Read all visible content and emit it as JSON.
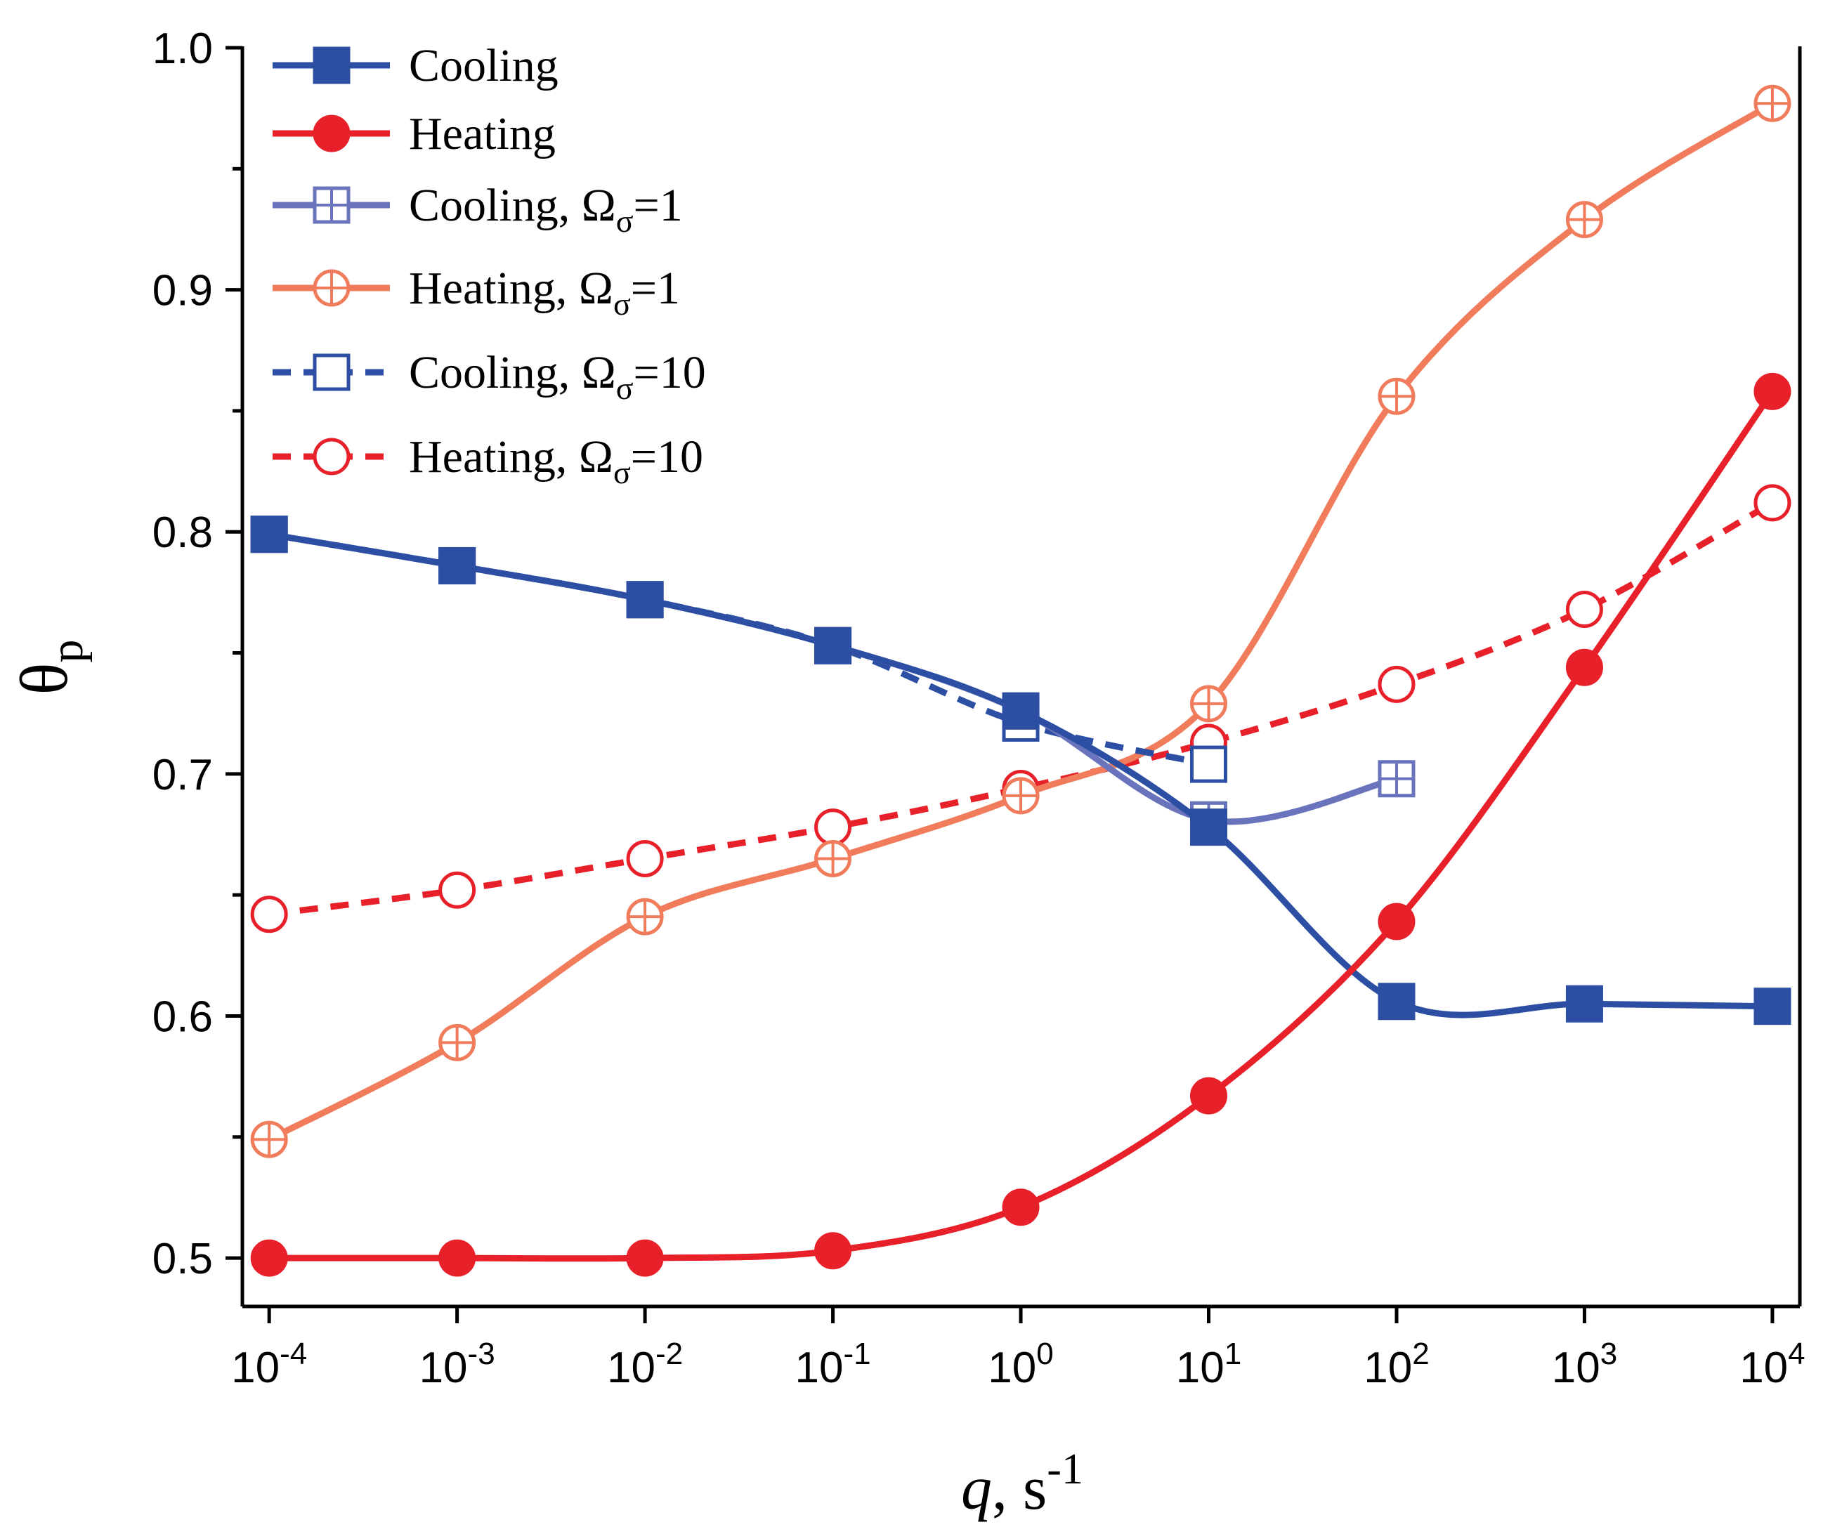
{
  "chart_data": {
    "type": "line",
    "title": "",
    "xscale": "log",
    "xlabel": {
      "var": "q",
      "sep": ", s",
      "exp": "-1"
    },
    "ylabel": {
      "base": "θ",
      "sub": "p"
    },
    "x": [
      0.0001,
      0.001,
      0.01,
      0.1,
      1,
      10,
      100,
      1000,
      10000
    ],
    "xlim": [
      7.2e-05,
      14000
    ],
    "ylim": [
      0.48,
      1.0
    ],
    "xticks": [
      {
        "base": "10",
        "exp": "-4"
      },
      {
        "base": "10",
        "exp": "-3"
      },
      {
        "base": "10",
        "exp": "-2"
      },
      {
        "base": "10",
        "exp": "-1"
      },
      {
        "base": "10",
        "exp": "0"
      },
      {
        "base": "10",
        "exp": "1"
      },
      {
        "base": "10",
        "exp": "2"
      },
      {
        "base": "10",
        "exp": "3"
      },
      {
        "base": "10",
        "exp": "4"
      }
    ],
    "yticks": [
      "0.5",
      "0.6",
      "0.7",
      "0.8",
      "0.9",
      "1.0"
    ],
    "grid": false,
    "legend_position": "top-left",
    "series": [
      {
        "name": "Cooling",
        "label": "Cooling",
        "omega": "",
        "color": "#2c4fa3",
        "dash": "solid",
        "marker": "square-filled",
        "values": [
          0.799,
          0.786,
          0.772,
          0.753,
          0.726,
          0.678,
          0.606,
          0.605,
          0.604
        ]
      },
      {
        "name": "Heating",
        "label": "Heating",
        "omega": "",
        "color": "#e8202a",
        "dash": "solid",
        "marker": "circle-filled",
        "values": [
          0.5,
          0.5,
          0.5,
          0.503,
          0.521,
          0.567,
          0.639,
          0.744,
          0.858
        ]
      },
      {
        "name": "Cooling, Ωσ=1",
        "label": "Cooling, Ω",
        "omega": "=1",
        "color": "#6a74bd",
        "dash": "solid",
        "marker": "square-plus",
        "values": [
          0.799,
          0.786,
          0.772,
          0.753,
          0.726,
          0.681,
          0.698,
          null,
          null
        ]
      },
      {
        "name": "Heating, Ωσ=1",
        "label": "Heating, Ω",
        "omega": "=1",
        "color": "#f07c5c",
        "dash": "solid",
        "marker": "circle-plus",
        "values": [
          0.549,
          0.589,
          0.641,
          0.665,
          0.691,
          0.729,
          0.856,
          0.929,
          0.977
        ]
      },
      {
        "name": "Cooling, Ωσ=10",
        "label": "Cooling, Ω",
        "omega": "=10",
        "color": "#2c4fa3",
        "dash": "dashed",
        "marker": "square-open",
        "values": [
          0.799,
          0.786,
          0.772,
          0.753,
          0.721,
          0.704,
          null,
          null,
          null
        ]
      },
      {
        "name": "Heating, Ωσ=10",
        "label": "Heating, Ω",
        "omega": "=10",
        "color": "#e8202a",
        "dash": "dashed",
        "marker": "circle-open",
        "values": [
          0.642,
          0.652,
          0.665,
          0.678,
          0.694,
          0.713,
          0.737,
          0.768,
          0.812
        ]
      }
    ]
  }
}
